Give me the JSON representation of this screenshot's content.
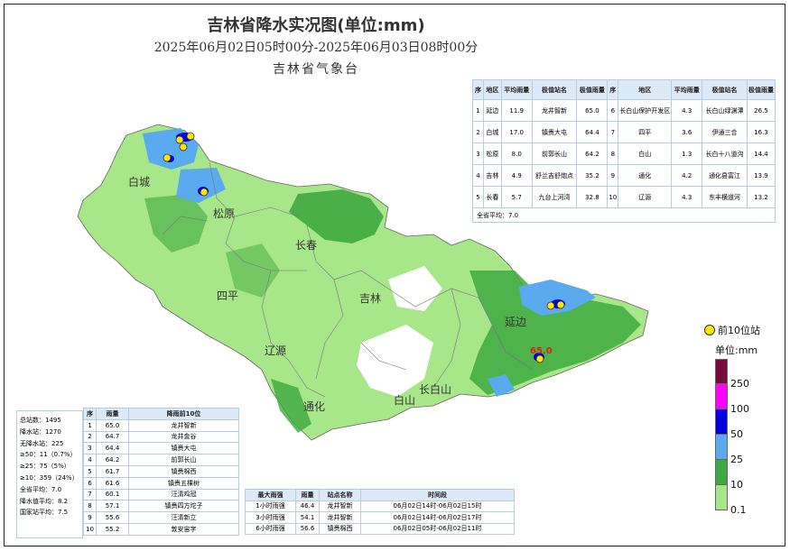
{
  "header": {
    "title": "吉林省降水实况图(单位:mm)",
    "period": "2025年06月02日05时00分-2025年06月03日08时00分",
    "agency": "吉林省气象台"
  },
  "map": {
    "cities": [
      "白城",
      "松原",
      "长春",
      "四平",
      "吉林",
      "辽源",
      "通化",
      "白山",
      "长白山",
      "延边"
    ],
    "max_label": "65.0"
  },
  "region_table": {
    "headers": [
      "序",
      "地区",
      "平均雨量",
      "极值站名",
      "极值雨量",
      "序",
      "地区",
      "平均雨量",
      "极值站名",
      "极值雨量"
    ],
    "rows": [
      [
        "1",
        "延边",
        "11.9",
        "龙井智新",
        "65.0",
        "6",
        "长白山保护开发区",
        "4.3",
        "长白山绿渊潭",
        "26.5"
      ],
      [
        "2",
        "白城",
        "17.0",
        "镇赉大屯",
        "64.4",
        "7",
        "四平",
        "3.6",
        "伊通三合",
        "16.3"
      ],
      [
        "3",
        "松原",
        "8.0",
        "前郭长山",
        "64.2",
        "8",
        "白山",
        "1.3",
        "长白十八道沟",
        "14.4"
      ],
      [
        "4",
        "吉林",
        "4.9",
        "舒兰吉舒炮点",
        "35.2",
        "9",
        "通化",
        "4.2",
        "通化县富江",
        "13.9"
      ],
      [
        "5",
        "长春",
        "5.7",
        "九台上河湾",
        "32.8",
        "10",
        "辽源",
        "4.3",
        "东丰横道河",
        "13.2"
      ]
    ],
    "province_avg": "全省平均：7.0"
  },
  "stats": {
    "lines": [
      "总站数：1495",
      "降水站：1270",
      "无降水站：225",
      "≥50：11（0.7%）",
      "≥25：75（5%）",
      "≥10：359（24%）",
      "全省平均：7.0",
      "降水值平均：8.2",
      "国家站平均：7.5"
    ]
  },
  "top10_table": {
    "headers": [
      "序",
      "雨量",
      "降雨前10位"
    ],
    "rows": [
      [
        "1",
        "65.0",
        "龙井智新"
      ],
      [
        "2",
        "64.7",
        "龙井金谷"
      ],
      [
        "3",
        "64.4",
        "镇赉大屯"
      ],
      [
        "4",
        "64.2",
        "前郭长山"
      ],
      [
        "5",
        "61.7",
        "镇赉棉西"
      ],
      [
        "6",
        "61.6",
        "镇赉五棵树"
      ],
      [
        "7",
        "60.1",
        "汪清鸡冠"
      ],
      [
        "8",
        "57.1",
        "镇赉四方坨子"
      ],
      [
        "9",
        "55.6",
        "汪清新立"
      ],
      [
        "10",
        "55.2",
        "敦安宙字"
      ]
    ]
  },
  "max_intensity_table": {
    "headers": [
      "最大雨强",
      "雨量",
      "站点名称",
      "时间段"
    ],
    "rows": [
      [
        "1小时雨强",
        "46.4",
        "龙井智新",
        "06月02日14时-06月02日15时"
      ],
      [
        "3小时雨强",
        "54.1",
        "龙井智新",
        "06月02日14时-06月02日17时"
      ],
      [
        "6小时雨强",
        "56.6",
        "镇赉棉西",
        "06月02日05时-06月02日11时"
      ]
    ]
  },
  "legend": {
    "top10_label": "前10位站",
    "unit": "单位:mm",
    "levels": [
      "250",
      "100",
      "50",
      "25",
      "10",
      "0.1"
    ],
    "colors": [
      "#7a0a3c",
      "#ff00ff",
      "#0000e0",
      "#5aaaf0",
      "#3ea93e",
      "#a8e68a"
    ]
  }
}
